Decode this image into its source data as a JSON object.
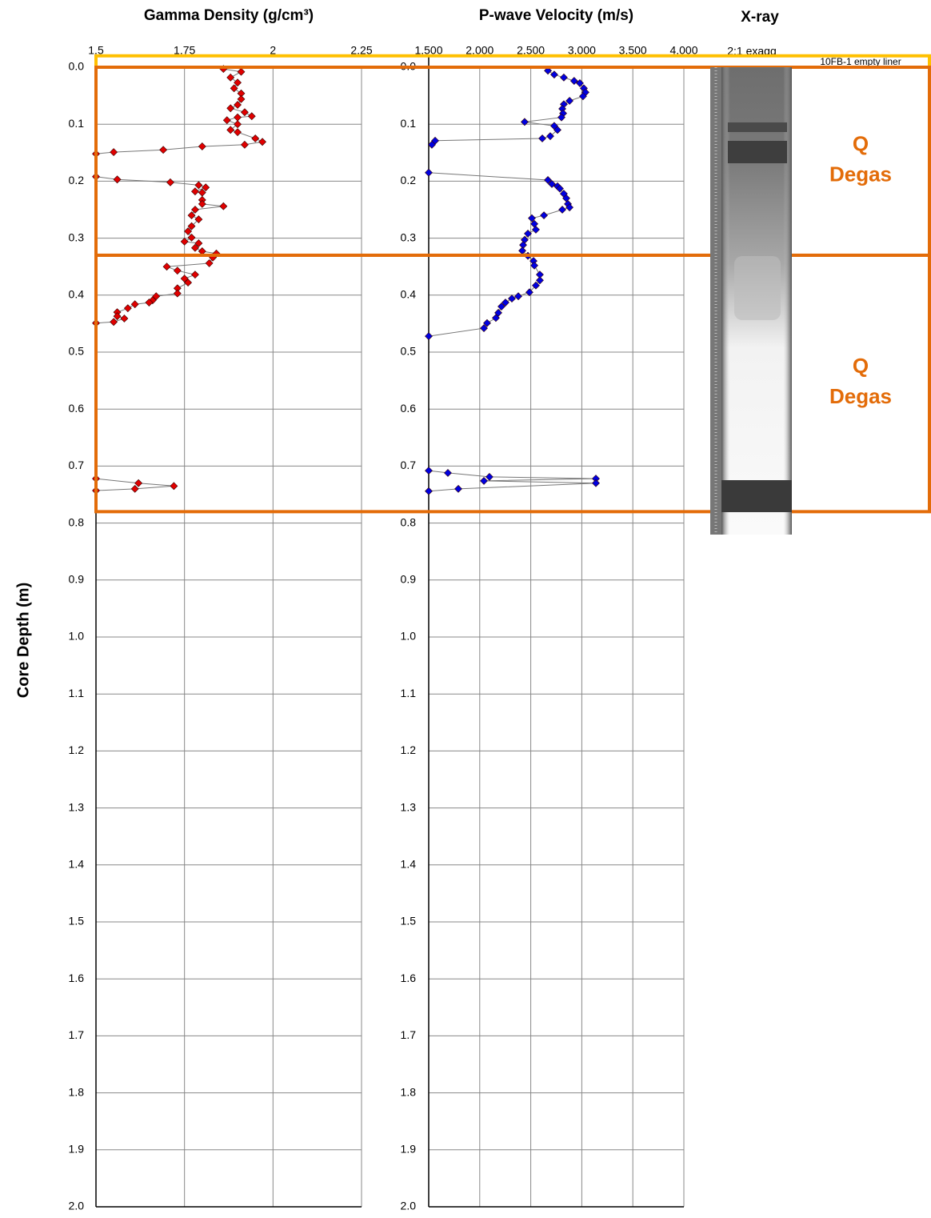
{
  "y_label": "Core Depth (m)",
  "xray": {
    "title": "X-ray",
    "subtitle": "2:1 exagg"
  },
  "sections": [
    {
      "label": "10FB-1 empty liner",
      "top": -0.02,
      "bottom": 0.0,
      "color": "#ffc000"
    },
    {
      "label": [
        "Q",
        "Degas"
      ],
      "top": 0.0,
      "bottom": 0.33,
      "color": "#e36c09"
    },
    {
      "label": [
        "Q",
        "Degas"
      ],
      "top": 0.33,
      "bottom": 0.78,
      "color": "#e36c09"
    }
  ],
  "chart_data": [
    {
      "type": "line",
      "title": "Gamma Density (g/cm³)",
      "color": "#e00000",
      "xlim": [
        1.5,
        2.25
      ],
      "xticks": [
        1.5,
        1.75,
        2,
        2.25
      ],
      "ylim": [
        0,
        2
      ],
      "invert_y": true,
      "grid": true,
      "yticks": [
        {
          "value": 0,
          "label": "0.0"
        },
        0.1,
        0.2,
        0.3,
        0.4,
        0.5,
        0.6,
        0.7,
        0.8,
        0.9,
        {
          "value": 1,
          "label": "1.0"
        },
        1.1,
        1.2,
        1.3,
        1.4,
        1.5,
        1.6,
        1.7,
        1.8,
        1.9,
        {
          "value": 2,
          "label": "2.0"
        }
      ],
      "depth": [
        0.003,
        0.008,
        0.018,
        0.027,
        0.037,
        0.046,
        0.056,
        0.066,
        0.072,
        0.079,
        0.086,
        0.088,
        0.093,
        0.1,
        0.11,
        0.114,
        0.125,
        0.131,
        0.136,
        0.139,
        0.145,
        0.149,
        0.152,
        null,
        0.192,
        0.197,
        0.202,
        0.207,
        0.211,
        0.218,
        0.22,
        0.233,
        0.24,
        0.244,
        0.25,
        0.26,
        0.267,
        0.279,
        0.288,
        0.299,
        0.306,
        0.309,
        0.317,
        0.323,
        0.327,
        0.334,
        0.344,
        0.35,
        0.357,
        0.364,
        0.371,
        0.378,
        0.388,
        0.397,
        0.402,
        0.409,
        0.413,
        0.416,
        0.423,
        0.43,
        0.437,
        0.441,
        0.447,
        0.449,
        null,
        0.722,
        0.73,
        0.735,
        0.74,
        0.743
      ],
      "values": [
        1.86,
        1.91,
        1.88,
        1.9,
        1.89,
        1.91,
        1.91,
        1.9,
        1.88,
        1.92,
        1.94,
        1.9,
        1.87,
        1.9,
        1.88,
        1.9,
        1.95,
        1.97,
        1.92,
        1.8,
        1.69,
        1.55,
        1.5,
        null,
        1.5,
        1.56,
        1.71,
        1.79,
        1.81,
        1.78,
        1.8,
        1.8,
        1.8,
        1.86,
        1.78,
        1.77,
        1.79,
        1.77,
        1.76,
        1.77,
        1.75,
        1.79,
        1.78,
        1.8,
        1.84,
        1.83,
        1.82,
        1.7,
        1.73,
        1.78,
        1.75,
        1.76,
        1.73,
        1.73,
        1.67,
        1.66,
        1.65,
        1.61,
        1.59,
        1.56,
        1.56,
        1.58,
        1.55,
        1.5,
        null,
        1.5,
        1.62,
        1.72,
        1.61,
        1.5
      ]
    },
    {
      "type": "line",
      "title": "P-wave Velocity (m/s)",
      "color": "#0000e0",
      "xlim": [
        1500,
        4000
      ],
      "xticks": [
        {
          "value": 1500,
          "label": "1.500"
        },
        {
          "value": 2000,
          "label": "2.000"
        },
        {
          "value": 2500,
          "label": "2.500"
        },
        {
          "value": 3000,
          "label": "3.000"
        },
        {
          "value": 3500,
          "label": "3.500"
        },
        {
          "value": 4000,
          "label": "4.000"
        }
      ],
      "ylim": [
        0,
        2
      ],
      "invert_y": true,
      "grid": true,
      "yticks": [
        {
          "value": 0,
          "label": "0.0"
        },
        0.1,
        0.2,
        0.3,
        0.4,
        0.5,
        0.6,
        0.7,
        0.8,
        0.9,
        {
          "value": 1,
          "label": "1.0"
        },
        1.1,
        1.2,
        1.3,
        1.4,
        1.5,
        1.6,
        1.7,
        1.8,
        1.9,
        {
          "value": 2,
          "label": "2.0"
        }
      ],
      "depth": [
        0.006,
        0.013,
        0.018,
        0.024,
        0.028,
        0.037,
        0.044,
        0.051,
        0.059,
        0.065,
        0.073,
        0.081,
        0.088,
        0.096,
        0.103,
        0.11,
        0.121,
        0.125,
        0.129,
        0.136,
        null,
        0.185,
        0.198,
        0.205,
        0.209,
        0.213,
        0.222,
        0.23,
        0.24,
        0.246,
        0.25,
        0.26,
        0.265,
        0.275,
        0.285,
        0.292,
        0.303,
        0.312,
        0.322,
        0.331,
        0.34,
        0.348,
        0.364,
        0.374,
        0.383,
        0.395,
        0.402,
        0.406,
        0.413,
        0.42,
        0.431,
        0.44,
        0.449,
        0.458,
        0.472,
        null,
        0.708,
        0.712,
        0.719,
        0.722,
        0.726,
        0.73,
        0.74,
        0.744
      ],
      "values": [
        2668,
        2730,
        2824,
        2925,
        2981,
        3020,
        3036,
        3012,
        2880,
        2824,
        2809,
        2817,
        2801,
        2440,
        2730,
        2762,
        2691,
        2613,
        1563,
        1531,
        null,
        1500,
        2668,
        2707,
        2762,
        2785,
        2824,
        2848,
        2864,
        2880,
        2809,
        2629,
        2511,
        2535,
        2550,
        2472,
        2440,
        2425,
        2417,
        2472,
        2527,
        2535,
        2589,
        2589,
        2550,
        2487,
        2378,
        2315,
        2252,
        2213,
        2182,
        2158,
        2072,
        2041,
        1500,
        null,
        1500,
        1688,
        2095,
        3138,
        2041,
        3138,
        1790,
        1500
      ]
    }
  ]
}
